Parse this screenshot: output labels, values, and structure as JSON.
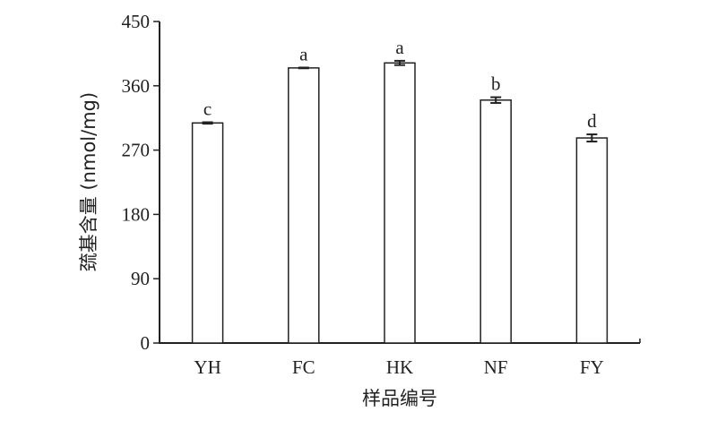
{
  "chart_data": {
    "type": "bar",
    "title": "",
    "xlabel": "样品编号",
    "ylabel": "巯基含量 (nmol/mg)",
    "categories": [
      "YH",
      "FC",
      "HK",
      "NF",
      "FY"
    ],
    "values": [
      308,
      385,
      392,
      340,
      287
    ],
    "errors": [
      1,
      0.5,
      3,
      4,
      5
    ],
    "significance_labels": [
      "c",
      "a",
      "a",
      "b",
      "d"
    ],
    "ylim": [
      0,
      450
    ],
    "yticks": [
      0,
      90,
      180,
      270,
      360,
      450
    ],
    "grid": false,
    "bar_fill": "#ffffff",
    "bar_stroke": "#222222"
  }
}
